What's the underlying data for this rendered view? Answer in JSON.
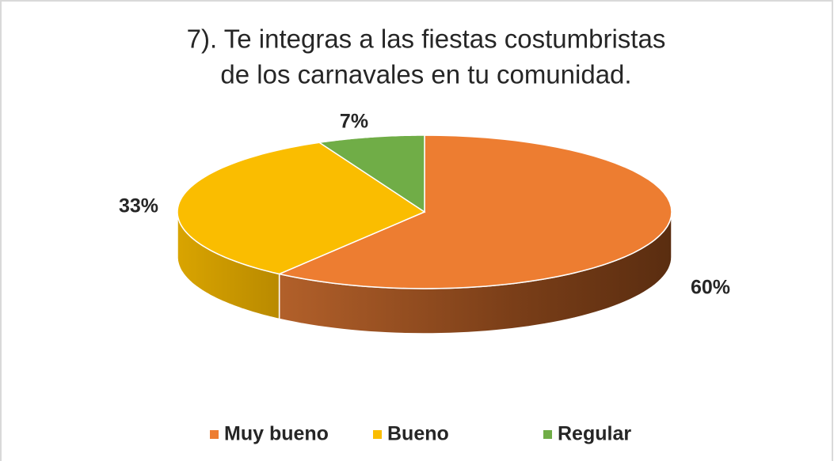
{
  "chart_data": {
    "type": "pie",
    "title": [
      "7). Te integras a las fiestas costumbristas",
      "de los carnavales en tu comunidad."
    ],
    "categories": [
      "Muy bueno",
      "Bueno",
      "Regular"
    ],
    "values": [
      60,
      33,
      7
    ],
    "value_labels": [
      "60%",
      "33%",
      "7%"
    ],
    "colors": [
      "#ED7D31",
      "#FABD00",
      "#70AD47"
    ],
    "legend": "bottom"
  }
}
